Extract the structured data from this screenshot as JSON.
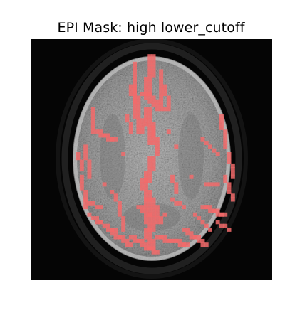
{
  "figure": {
    "title": "EPI Mask: high lower_cutoff",
    "overlay_color": "#f26b6b",
    "background_color": "#050505",
    "tissue_color": "#a8a8a8"
  }
}
